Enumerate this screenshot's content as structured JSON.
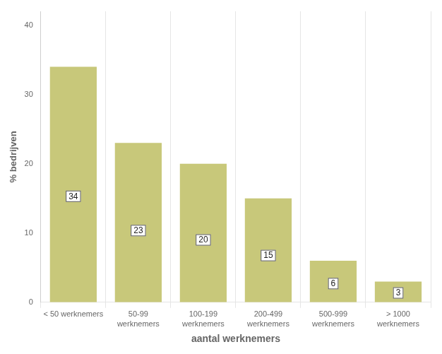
{
  "chart_data": {
    "type": "bar",
    "categories": [
      "< 50 werknemers",
      "50-99\nwerknemers",
      "100-199\nwerknemers",
      "200-499\nwerknemers",
      "500-999\nwerknemers",
      "> 1000\nwerknemers"
    ],
    "values": [
      34,
      23,
      20,
      15,
      6,
      3
    ],
    "color": "#c8c87a",
    "xlabel": "aantal werknemers",
    "ylabel": "% bedrijven",
    "ylim": [
      0,
      42
    ],
    "yticks": [
      0,
      10,
      20,
      30,
      40
    ],
    "grid": "x",
    "data_labels": true
  }
}
